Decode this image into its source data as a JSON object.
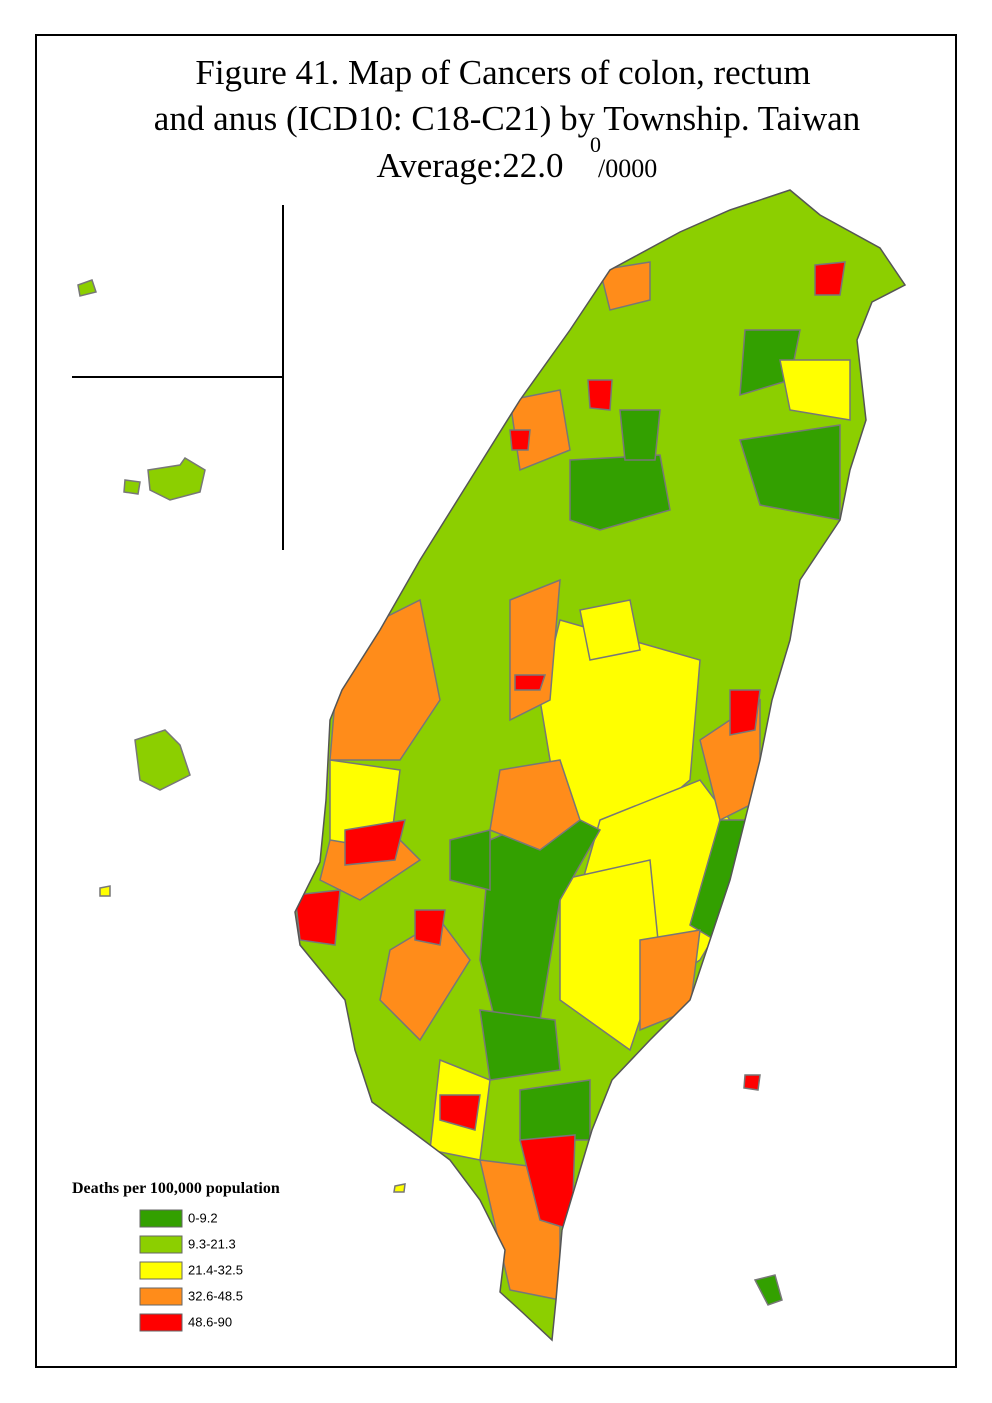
{
  "title": {
    "lines": [
      "Figure 41. Map of Cancers of colon, rectum",
      "and anus (ICD10: C18-C21) by Township. Taiwan"
    ],
    "average": "Average:22.0",
    "superscript": "0",
    "unit": "/0000"
  },
  "legend": {
    "title": "Deaths per 100,000 population",
    "classes": [
      {
        "label": "0-9.2",
        "color": "#33a000"
      },
      {
        "label": "9.3-21.3",
        "color": "#8ccf00"
      },
      {
        "label": "21.4-32.5",
        "color": "#ffff00"
      },
      {
        "label": "32.6-48.5",
        "color": "#ff8c1a"
      },
      {
        "label": "48.6-90",
        "color": "#ff0000"
      }
    ]
  }
}
